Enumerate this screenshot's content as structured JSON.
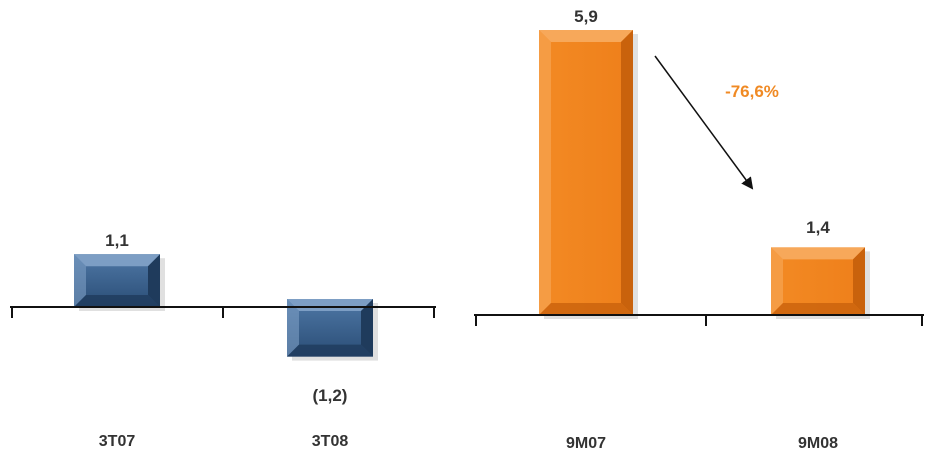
{
  "chart_data": [
    {
      "type": "bar",
      "categories": [
        "3T07",
        "3T08"
      ],
      "values": [
        1.1,
        -1.2
      ],
      "data_labels": [
        "1,1",
        "(1,2)"
      ],
      "color": "#2f5580",
      "title": "",
      "xlabel": "",
      "ylabel": "",
      "grid": false
    },
    {
      "type": "bar",
      "categories": [
        "9M07",
        "9M08"
      ],
      "values": [
        5.9,
        1.4
      ],
      "data_labels": [
        "5,9",
        "1,4"
      ],
      "color": "#f0821e",
      "title": "",
      "xlabel": "",
      "ylabel": "",
      "grid": false,
      "annotation": {
        "text": "-76,6%",
        "color": "#f08a24"
      }
    }
  ]
}
